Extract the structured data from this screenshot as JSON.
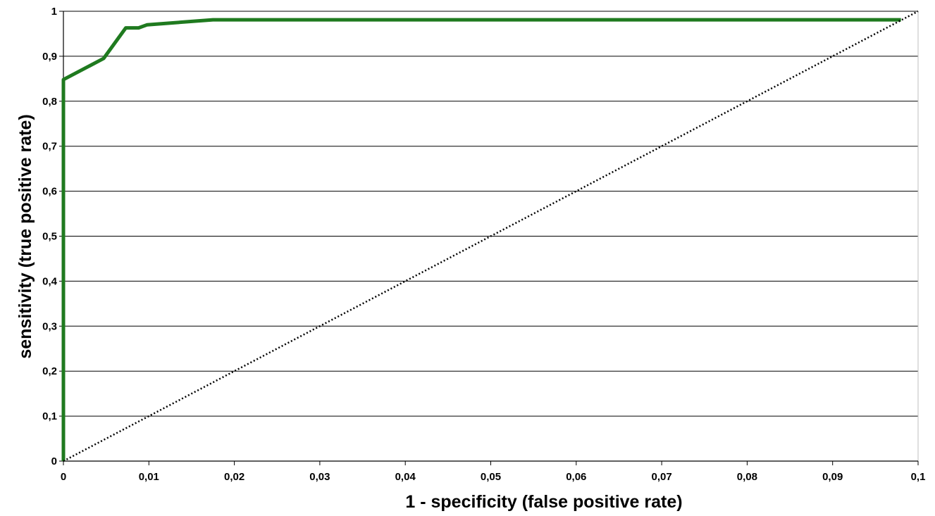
{
  "chart_data": {
    "type": "line",
    "title": "",
    "xlabel": "1 - specificity (false positive rate)",
    "ylabel": "sensitivity (true positive rate)",
    "xlim": [
      0,
      0.1
    ],
    "ylim": [
      0,
      1
    ],
    "x_ticks": [
      0,
      0.01,
      0.02,
      0.03,
      0.04,
      0.05,
      0.06,
      0.07,
      0.08,
      0.09,
      0.1
    ],
    "x_tick_labels": [
      "0",
      "0,01",
      "0,02",
      "0,03",
      "0,04",
      "0,05",
      "0,06",
      "0,07",
      "0,08",
      "0,09",
      "0,1"
    ],
    "y_ticks": [
      0,
      0.1,
      0.2,
      0.3,
      0.4,
      0.5,
      0.6,
      0.7,
      0.8,
      0.9,
      1
    ],
    "y_tick_labels": [
      "0",
      "0,1",
      "0,2",
      "0,3",
      "0,4",
      "0,5",
      "0,6",
      "0,7",
      "0,8",
      "0,9",
      "1"
    ],
    "grid": "horizontal",
    "legend": "none",
    "series": [
      {
        "color": "#1f7a1f",
        "style": "solid",
        "x": [
          0,
          0,
          0.0047,
          0.0073,
          0.0088,
          0.0098,
          0.0175,
          0.098
        ],
        "y": [
          0,
          0.848,
          0.895,
          0.963,
          0.963,
          0.97,
          0.981,
          0.981
        ]
      },
      {
        "color": "#000000",
        "style": "dotted",
        "x": [
          0,
          0.1
        ],
        "y": [
          0,
          1
        ]
      }
    ]
  }
}
